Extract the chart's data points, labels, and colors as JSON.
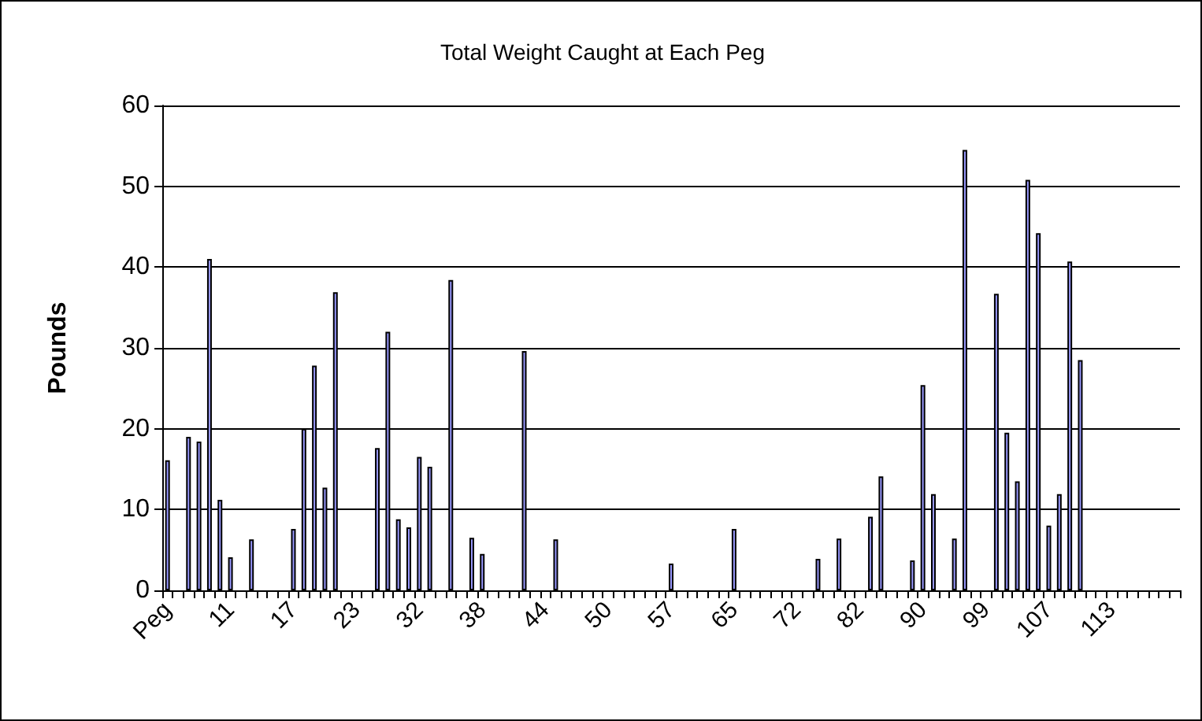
{
  "chart_data": {
    "type": "bar",
    "title": "Total Weight Caught at Each Peg",
    "ylabel": "Pounds",
    "categories": [
      "Peg",
      null,
      null,
      null,
      null,
      null,
      "11",
      null,
      null,
      null,
      null,
      null,
      "17",
      null,
      null,
      null,
      null,
      null,
      "23",
      null,
      null,
      null,
      null,
      null,
      "32",
      null,
      null,
      null,
      null,
      null,
      "38",
      null,
      null,
      null,
      null,
      null,
      "44",
      null,
      null,
      null,
      null,
      null,
      "50",
      null,
      null,
      null,
      null,
      null,
      "57",
      null,
      null,
      null,
      null,
      null,
      "65",
      null,
      null,
      null,
      null,
      null,
      "72",
      null,
      null,
      null,
      null,
      null,
      "82",
      null,
      null,
      null,
      null,
      null,
      "90",
      null,
      null,
      null,
      null,
      null,
      "99",
      null,
      null,
      null,
      null,
      null,
      "107",
      null,
      null,
      null,
      null,
      null,
      "113",
      null,
      null,
      null,
      null,
      null,
      null
    ],
    "values": [
      16.1,
      null,
      19,
      18.4,
      41,
      11.2,
      4.1,
      null,
      6.3,
      null,
      null,
      null,
      7.6,
      20,
      27.8,
      12.7,
      36.9,
      null,
      null,
      null,
      17.6,
      32,
      8.8,
      7.8,
      16.5,
      15.3,
      null,
      38.4,
      null,
      6.5,
      4.5,
      null,
      null,
      null,
      29.6,
      null,
      null,
      6.3,
      null,
      null,
      null,
      null,
      null,
      null,
      null,
      null,
      null,
      null,
      3.3,
      null,
      null,
      null,
      null,
      null,
      7.6,
      null,
      null,
      null,
      null,
      null,
      null,
      null,
      3.9,
      null,
      6.4,
      null,
      null,
      9.1,
      14.1,
      null,
      null,
      3.7,
      25.4,
      11.9,
      null,
      6.4,
      54.5,
      null,
      null,
      36.7,
      19.5,
      13.5,
      50.8,
      44.2,
      8,
      11.9,
      40.7,
      28.5,
      null,
      null,
      null,
      null,
      null,
      null,
      null,
      null,
      null
    ],
    "color": "#9999ff",
    "ylim": [
      0,
      60
    ],
    "yticks": [
      0,
      10,
      20,
      30,
      40,
      50,
      60
    ],
    "grid": "y"
  }
}
